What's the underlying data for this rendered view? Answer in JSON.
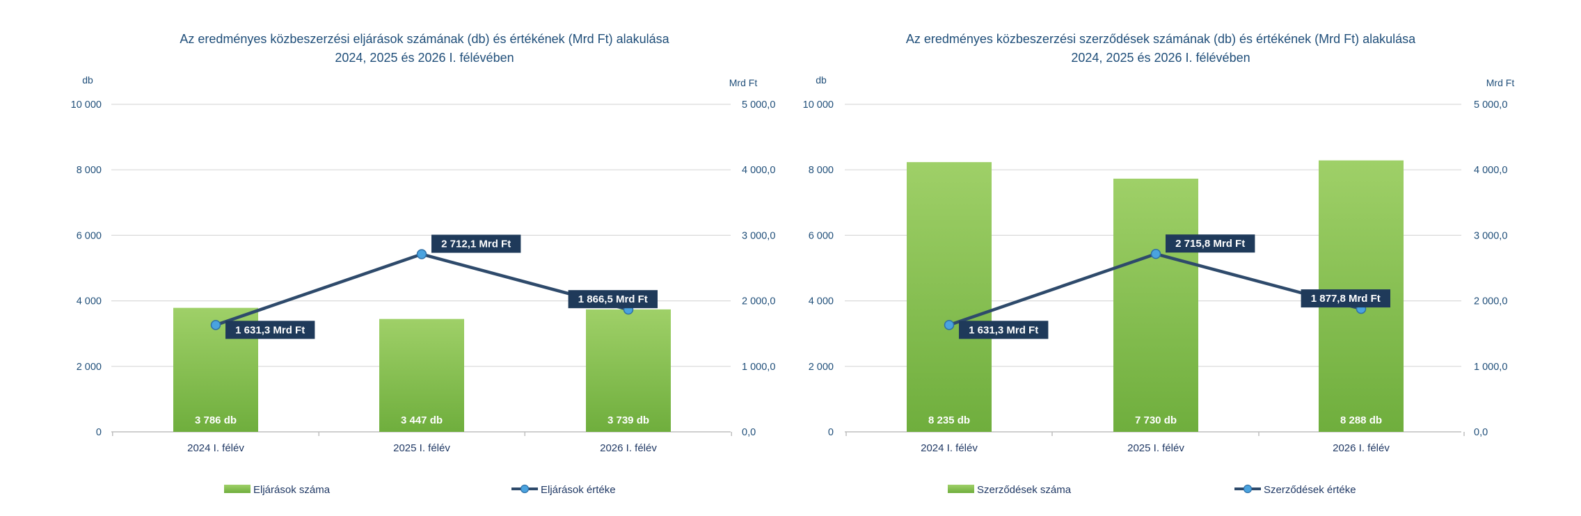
{
  "chart_data": [
    {
      "type": "bar",
      "title": "Az eredményes közbeszerzési eljárások számának (db) és értékének (Mrd Ft) alakulása",
      "subtitle": "2024, 2025 és 2026  I. félévében",
      "y_left_label": "db",
      "y_right_label": "Mrd Ft",
      "ylim_left": [
        0,
        10000
      ],
      "ylim_right": [
        0,
        5000
      ],
      "yticks_left": [
        "0",
        "2 000",
        "4 000",
        "6 000",
        "8 000",
        "10 000"
      ],
      "yticks_right": [
        "0,0",
        "1 000,0",
        "2 000,0",
        "3 000,0",
        "4 000,0",
        "5 000,0"
      ],
      "categories": [
        "2024 I. félév",
        "2025 I. félév",
        "2026 I. félév"
      ],
      "series": [
        {
          "name": "Eljárások száma",
          "type": "bar",
          "axis": "left",
          "values": [
            3786,
            3447,
            3739
          ],
          "labels": [
            "3 786 db",
            "3 447 db",
            "3 739 db"
          ]
        },
        {
          "name": "Eljárások értéke",
          "type": "line",
          "axis": "right",
          "values": [
            1631.3,
            2712.1,
            1866.5
          ],
          "labels": [
            "1 631,3 Mrd Ft",
            "2 712,1 Mrd Ft",
            "1 866,5 Mrd Ft"
          ]
        }
      ],
      "grid": true,
      "legend": "bottom"
    },
    {
      "type": "bar",
      "title": "Az eredményes közbeszerzési szerződések számának (db) és értékének (Mrd Ft) alakulása",
      "subtitle": "2024, 2025 és 2026 I. félévében",
      "y_left_label": "db",
      "y_right_label": "Mrd Ft",
      "ylim_left": [
        0,
        10000
      ],
      "ylim_right": [
        0,
        5000
      ],
      "yticks_left": [
        "0",
        "2 000",
        "4 000",
        "6 000",
        "8 000",
        "10 000"
      ],
      "yticks_right": [
        "0,0",
        "1 000,0",
        "2 000,0",
        "3 000,0",
        "4 000,0",
        "5 000,0"
      ],
      "categories": [
        "2024 I. félév",
        "2025 I. félév",
        "2026 I. félév"
      ],
      "series": [
        {
          "name": "Szerződések száma",
          "type": "bar",
          "axis": "left",
          "values": [
            8235,
            7730,
            8288
          ],
          "labels": [
            "8 235 db",
            "7 730 db",
            "8 288 db"
          ]
        },
        {
          "name": "Szerződések értéke",
          "type": "line",
          "axis": "right",
          "values": [
            1631.3,
            2715.8,
            1877.8
          ],
          "labels": [
            "1 631,3 Mrd Ft",
            "2 715,8 Mrd Ft",
            "1 877,8 Mrd Ft"
          ]
        }
      ],
      "grid": true,
      "legend": "bottom"
    }
  ],
  "colors": {
    "bar_top": "#9fd068",
    "bar_bottom": "#6fae3d",
    "line": "#2e4a6b",
    "marker": "#4aa3df",
    "label_bg": "#1f3a5a"
  }
}
